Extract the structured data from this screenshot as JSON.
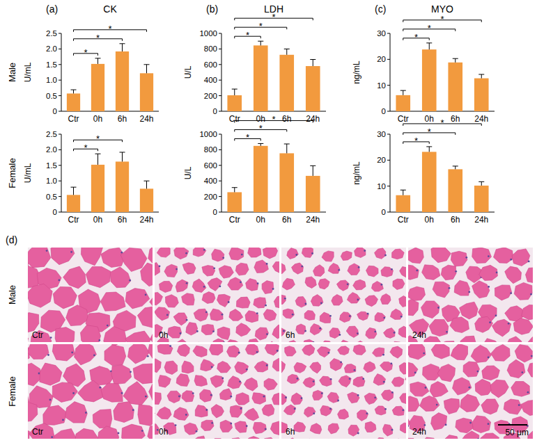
{
  "chart_data": [
    {
      "type": "bar",
      "panel": "(a)",
      "title": "CK",
      "row_label": "Male",
      "y_label": "U/mL",
      "categories": [
        "Ctr",
        "0h",
        "6h",
        "24h"
      ],
      "values": [
        0.57,
        1.52,
        1.92,
        1.22
      ],
      "errors": [
        0.12,
        0.18,
        0.25,
        0.28
      ],
      "color": "#f29a3e",
      "ylim": [
        0,
        2.5
      ],
      "yticks": [
        0,
        0.5,
        {
          "value": 1,
          "label": "1.0"
        },
        1.5,
        {
          "value": 2,
          "label": "2.0"
        },
        2.5
      ],
      "significance": [
        {
          "pair": [
            0,
            1
          ],
          "label": "*"
        },
        {
          "pair": [
            0,
            2
          ],
          "label": "*"
        },
        {
          "pair": [
            0,
            3
          ],
          "label": "*"
        }
      ]
    },
    {
      "type": "bar",
      "panel": "(b)",
      "title": "LDH",
      "row_label": "Male",
      "y_label": "U/L",
      "categories": [
        "Ctr",
        "0h",
        "6h",
        "24h"
      ],
      "values": [
        205,
        845,
        725,
        580
      ],
      "errors": [
        80,
        55,
        75,
        85
      ],
      "color": "#f29a3e",
      "ylim": [
        0,
        1000
      ],
      "yticks": [
        0,
        200,
        400,
        600,
        800,
        1000
      ],
      "significance": [
        {
          "pair": [
            0,
            1
          ],
          "label": "*"
        },
        {
          "pair": [
            0,
            2
          ],
          "label": "*"
        },
        {
          "pair": [
            0,
            3
          ],
          "label": "*"
        }
      ]
    },
    {
      "type": "bar",
      "panel": "(c)",
      "title": "MYO",
      "row_label": "Male",
      "y_label": "ng/mL",
      "categories": [
        "Ctr",
        "0h",
        "6h",
        "24h"
      ],
      "values": [
        6.2,
        23.8,
        18.8,
        12.7
      ],
      "errors": [
        1.8,
        2.5,
        1.5,
        1.5
      ],
      "color": "#f29a3e",
      "ylim": [
        0,
        30
      ],
      "yticks": [
        0,
        10,
        20,
        30
      ],
      "significance": [
        {
          "pair": [
            0,
            1
          ],
          "label": "*"
        },
        {
          "pair": [
            0,
            2
          ],
          "label": "*"
        },
        {
          "pair": [
            0,
            3
          ],
          "label": "*"
        }
      ]
    },
    {
      "type": "bar",
      "row_label": "Female",
      "y_label": "U/mL",
      "categories": [
        "Ctr",
        "0h",
        "6h",
        "24h"
      ],
      "values": [
        0.55,
        1.52,
        1.62,
        0.75
      ],
      "errors": [
        0.25,
        0.35,
        0.3,
        0.25
      ],
      "color": "#f29a3e",
      "ylim": [
        0,
        2.5
      ],
      "yticks": [
        0,
        0.5,
        {
          "value": 1,
          "label": "1.0"
        },
        1.5,
        {
          "value": 2,
          "label": "2.0"
        },
        2.5
      ],
      "significance": [
        {
          "pair": [
            0,
            1
          ],
          "label": "*"
        },
        {
          "pair": [
            0,
            2
          ],
          "label": "*"
        }
      ]
    },
    {
      "type": "bar",
      "row_label": "Female",
      "y_label": "U/L",
      "categories": [
        "Ctr",
        "0h",
        "6h",
        "24h"
      ],
      "values": [
        255,
        850,
        755,
        465
      ],
      "errors": [
        60,
        30,
        120,
        130
      ],
      "color": "#f29a3e",
      "ylim": [
        0,
        1000
      ],
      "yticks": [
        0,
        200,
        400,
        600,
        800,
        1000
      ],
      "significance": [
        {
          "pair": [
            0,
            1
          ],
          "label": "*"
        },
        {
          "pair": [
            0,
            2
          ],
          "label": "*"
        },
        {
          "pair": [
            0,
            3
          ],
          "label": "*"
        }
      ]
    },
    {
      "type": "bar",
      "row_label": "Female",
      "y_label": "ng/mL",
      "categories": [
        "Ctr",
        "0h",
        "6h",
        "24h"
      ],
      "values": [
        6.5,
        23.2,
        16.5,
        10.2
      ],
      "errors": [
        2.0,
        2.0,
        1.2,
        1.5
      ],
      "color": "#f29a3e",
      "ylim": [
        0,
        30
      ],
      "yticks": [
        0,
        10,
        20,
        30
      ],
      "significance": [
        {
          "pair": [
            0,
            1
          ],
          "label": "*"
        },
        {
          "pair": [
            0,
            2
          ],
          "label": "*"
        },
        {
          "pair": [
            0,
            3
          ],
          "label": "*"
        }
      ]
    }
  ],
  "histology": {
    "panel": "(d)",
    "rows": [
      "Male",
      "Female"
    ],
    "columns": [
      "Ctr",
      "0h",
      "6h",
      "24h"
    ],
    "scale_bar": "50 μm"
  }
}
